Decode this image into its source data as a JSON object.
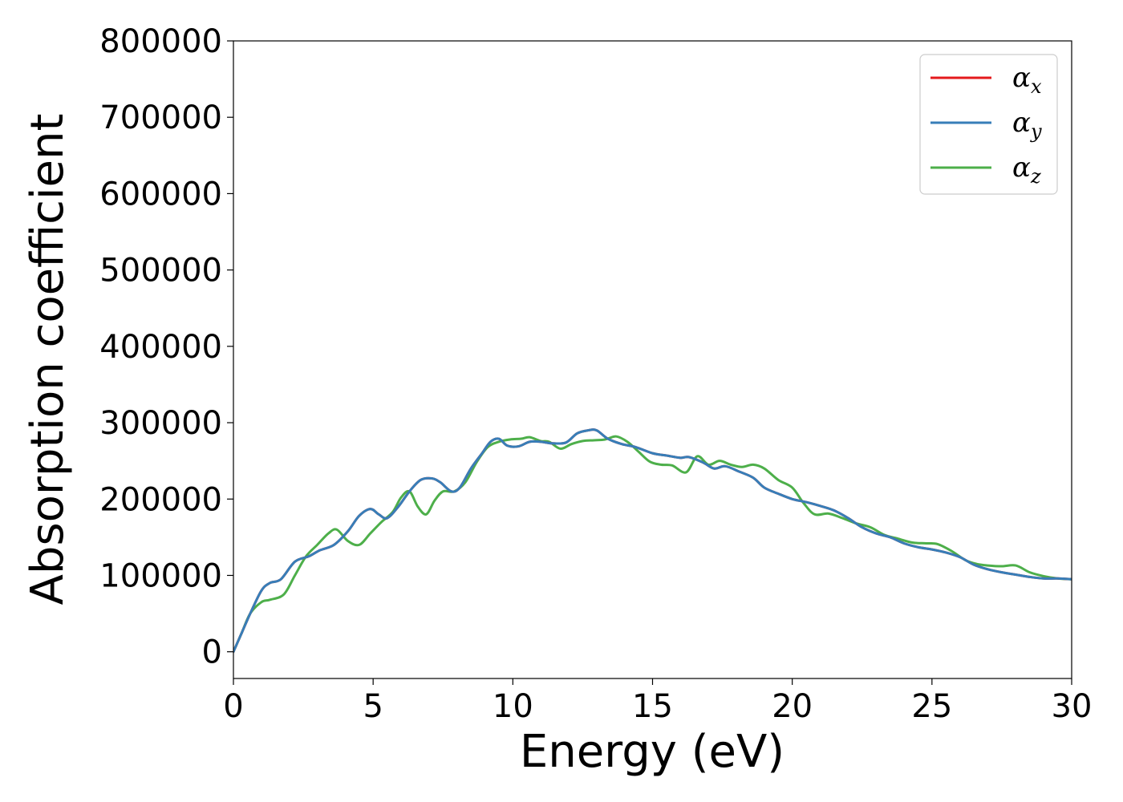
{
  "chart_data": {
    "type": "line",
    "title": "",
    "xlabel": "Energy (eV)",
    "ylabel": "Absorption coefficient",
    "xlim": [
      0,
      30
    ],
    "ylim": [
      -35000,
      800000
    ],
    "xticks": [
      "0",
      "5",
      "10",
      "15",
      "20",
      "25",
      "30"
    ],
    "yticks": [
      "0",
      "100000",
      "200000",
      "300000",
      "400000",
      "500000",
      "600000",
      "700000",
      "800000"
    ],
    "grid": false,
    "legend_position": "top-right",
    "series": [
      {
        "name": "α",
        "subscript": "x",
        "color": "#e41a1c",
        "x": [
          0,
          0.3,
          0.6,
          1.0,
          1.3,
          1.7,
          2.2,
          2.7,
          3.1,
          3.6,
          4.1,
          4.5,
          4.9,
          5.2,
          5.5,
          5.9,
          6.3,
          6.7,
          7.1,
          7.4,
          7.8,
          8.1,
          8.5,
          8.9,
          9.2,
          9.5,
          9.8,
          10.2,
          10.6,
          11.0,
          11.4,
          11.9,
          12.3,
          12.7,
          13.0,
          13.4,
          13.9,
          14.4,
          15.0,
          15.5,
          16.0,
          16.3,
          16.8,
          17.2,
          17.6,
          18.1,
          18.6,
          19.0,
          19.5,
          20.0,
          20.5,
          21.0,
          21.5,
          22.0,
          22.5,
          23.0,
          23.5,
          24.0,
          24.5,
          25.0,
          25.5,
          26.0,
          26.5,
          27.0,
          27.5,
          28.0,
          28.5,
          29.0,
          29.5,
          30.0
        ],
        "values": [
          0,
          25000,
          50000,
          80000,
          90000,
          95000,
          118000,
          125000,
          133000,
          140000,
          158000,
          178000,
          187000,
          180000,
          175000,
          190000,
          210000,
          225000,
          227000,
          222000,
          210000,
          215000,
          240000,
          260000,
          275000,
          279000,
          270000,
          269000,
          275000,
          275000,
          273000,
          274000,
          286000,
          290000,
          290000,
          279000,
          272000,
          268000,
          260000,
          257000,
          254000,
          255000,
          248000,
          240000,
          243000,
          236000,
          228000,
          215000,
          207000,
          200000,
          196000,
          191000,
          185000,
          175000,
          163000,
          155000,
          150000,
          142000,
          137000,
          134000,
          130000,
          124000,
          114000,
          108000,
          104000,
          101000,
          98000,
          96000,
          96000,
          95000
        ]
      },
      {
        "name": "α",
        "subscript": "y",
        "color": "#377eb8",
        "x": [
          0,
          0.3,
          0.6,
          1.0,
          1.3,
          1.7,
          2.2,
          2.7,
          3.1,
          3.6,
          4.1,
          4.5,
          4.9,
          5.2,
          5.5,
          5.9,
          6.3,
          6.7,
          7.1,
          7.4,
          7.8,
          8.1,
          8.5,
          8.9,
          9.2,
          9.5,
          9.8,
          10.2,
          10.6,
          11.0,
          11.4,
          11.9,
          12.3,
          12.7,
          13.0,
          13.4,
          13.9,
          14.4,
          15.0,
          15.5,
          16.0,
          16.3,
          16.8,
          17.2,
          17.6,
          18.1,
          18.6,
          19.0,
          19.5,
          20.0,
          20.5,
          21.0,
          21.5,
          22.0,
          22.5,
          23.0,
          23.5,
          24.0,
          24.5,
          25.0,
          25.5,
          26.0,
          26.5,
          27.0,
          27.5,
          28.0,
          28.5,
          29.0,
          29.5,
          30.0
        ],
        "values": [
          0,
          25000,
          50000,
          80000,
          90000,
          95000,
          118000,
          125000,
          133000,
          140000,
          158000,
          178000,
          187000,
          180000,
          175000,
          190000,
          210000,
          225000,
          227000,
          222000,
          210000,
          215000,
          240000,
          260000,
          275000,
          279000,
          270000,
          269000,
          275000,
          275000,
          273000,
          274000,
          286000,
          290000,
          290000,
          279000,
          272000,
          268000,
          260000,
          257000,
          254000,
          255000,
          248000,
          240000,
          243000,
          236000,
          228000,
          215000,
          207000,
          200000,
          196000,
          191000,
          185000,
          175000,
          163000,
          155000,
          150000,
          142000,
          137000,
          134000,
          130000,
          124000,
          114000,
          108000,
          104000,
          101000,
          98000,
          96000,
          96000,
          95000
        ]
      },
      {
        "name": "α",
        "subscript": "z",
        "color": "#4daf4a",
        "x": [
          0,
          0.3,
          0.6,
          1.0,
          1.3,
          1.8,
          2.2,
          2.6,
          3.0,
          3.4,
          3.7,
          4.1,
          4.5,
          4.9,
          5.3,
          5.7,
          6.0,
          6.3,
          6.6,
          6.9,
          7.2,
          7.5,
          7.9,
          8.3,
          8.7,
          9.1,
          9.5,
          9.9,
          10.3,
          10.6,
          11.0,
          11.3,
          11.7,
          12.1,
          12.5,
          12.9,
          13.3,
          13.7,
          14.1,
          14.5,
          14.9,
          15.3,
          15.7,
          16.2,
          16.6,
          17.0,
          17.4,
          17.8,
          18.2,
          18.6,
          19.0,
          19.5,
          20.0,
          20.4,
          20.8,
          21.3,
          21.8,
          22.3,
          22.8,
          23.3,
          23.8,
          24.3,
          24.8,
          25.2,
          25.7,
          26.2,
          26.6,
          27.0,
          27.5,
          28.0,
          28.5,
          29.0,
          29.5,
          30.0
        ],
        "values": [
          0,
          25000,
          50000,
          65000,
          68000,
          75000,
          100000,
          125000,
          140000,
          155000,
          160000,
          145000,
          140000,
          155000,
          170000,
          183000,
          202000,
          210000,
          190000,
          180000,
          198000,
          210000,
          210000,
          222000,
          248000,
          268000,
          275000,
          278000,
          279000,
          281000,
          276000,
          275000,
          266000,
          272000,
          276000,
          277000,
          278000,
          282000,
          275000,
          262000,
          249000,
          245000,
          244000,
          235000,
          256000,
          245000,
          250000,
          245000,
          242000,
          245000,
          240000,
          225000,
          215000,
          195000,
          180000,
          181000,
          175000,
          168000,
          163000,
          153000,
          148000,
          143000,
          142000,
          141000,
          132000,
          120000,
          115000,
          113000,
          112000,
          113000,
          104000,
          99000,
          96000,
          95000
        ]
      }
    ]
  }
}
